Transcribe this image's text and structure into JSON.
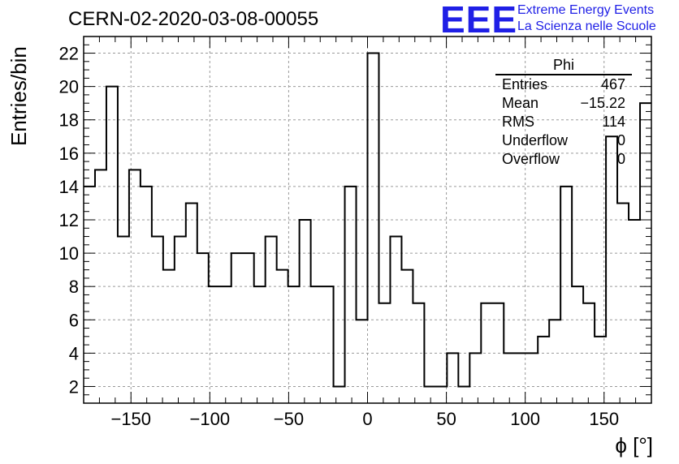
{
  "title": "CERN-02-2020-03-08-00055",
  "logo": {
    "mark": "EEE",
    "line1": "Extreme Energy Events",
    "line2": "La Scienza nelle Scuole",
    "color": "#1f1fe6"
  },
  "stats": {
    "header": "Phi",
    "rows": [
      {
        "label": "Entries",
        "value": "467"
      },
      {
        "label": "Mean",
        "value": "−15.22"
      },
      {
        "label": "RMS",
        "value": "114"
      },
      {
        "label": "Underflow",
        "value": "0"
      },
      {
        "label": "Overflow",
        "value": "0"
      }
    ]
  },
  "chart_data": {
    "type": "histogram",
    "title": "CERN-02-2020-03-08-00055",
    "xlabel": "ϕ [°]",
    "ylabel": "Entries/bin",
    "xlim": [
      -180,
      180
    ],
    "ylim": [
      1,
      23
    ],
    "bin_width": 7.2,
    "grid": true,
    "xticks": [
      -150,
      -100,
      -50,
      0,
      50,
      100,
      150
    ],
    "xtick_labels": [
      "−150",
      "−100",
      "−50",
      "0",
      "50",
      "100",
      "150"
    ],
    "yticks": [
      2,
      4,
      6,
      8,
      10,
      12,
      14,
      16,
      18,
      20,
      22
    ],
    "values": [
      14,
      15,
      20,
      11,
      15,
      14,
      11,
      9,
      11,
      13,
      10,
      8,
      8,
      10,
      10,
      8,
      11,
      9,
      8,
      12,
      8,
      8,
      2,
      14,
      6,
      22,
      7,
      11,
      9,
      7,
      2,
      2,
      4,
      2,
      4,
      7,
      7,
      4,
      4,
      4,
      5,
      6,
      14,
      8,
      7,
      5,
      17,
      13,
      12,
      19
    ]
  }
}
